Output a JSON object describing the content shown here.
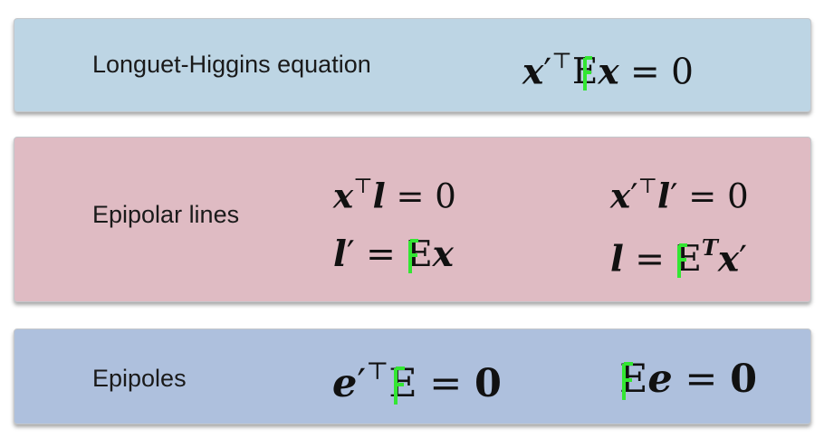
{
  "panels": [
    {
      "label": "Longuet-Higgins equation",
      "color": "#bdd5e4"
    },
    {
      "label": "Epipolar lines",
      "color": "#dfbbc3"
    },
    {
      "label": "Epipoles",
      "color": "#aec0dd"
    }
  ],
  "overlay": {
    "glyph": "F",
    "color": "#33e633"
  },
  "symbols": {
    "transpose": "⊤",
    "T": "T",
    "equals": "=",
    "zero": "0",
    "prime": "′"
  }
}
